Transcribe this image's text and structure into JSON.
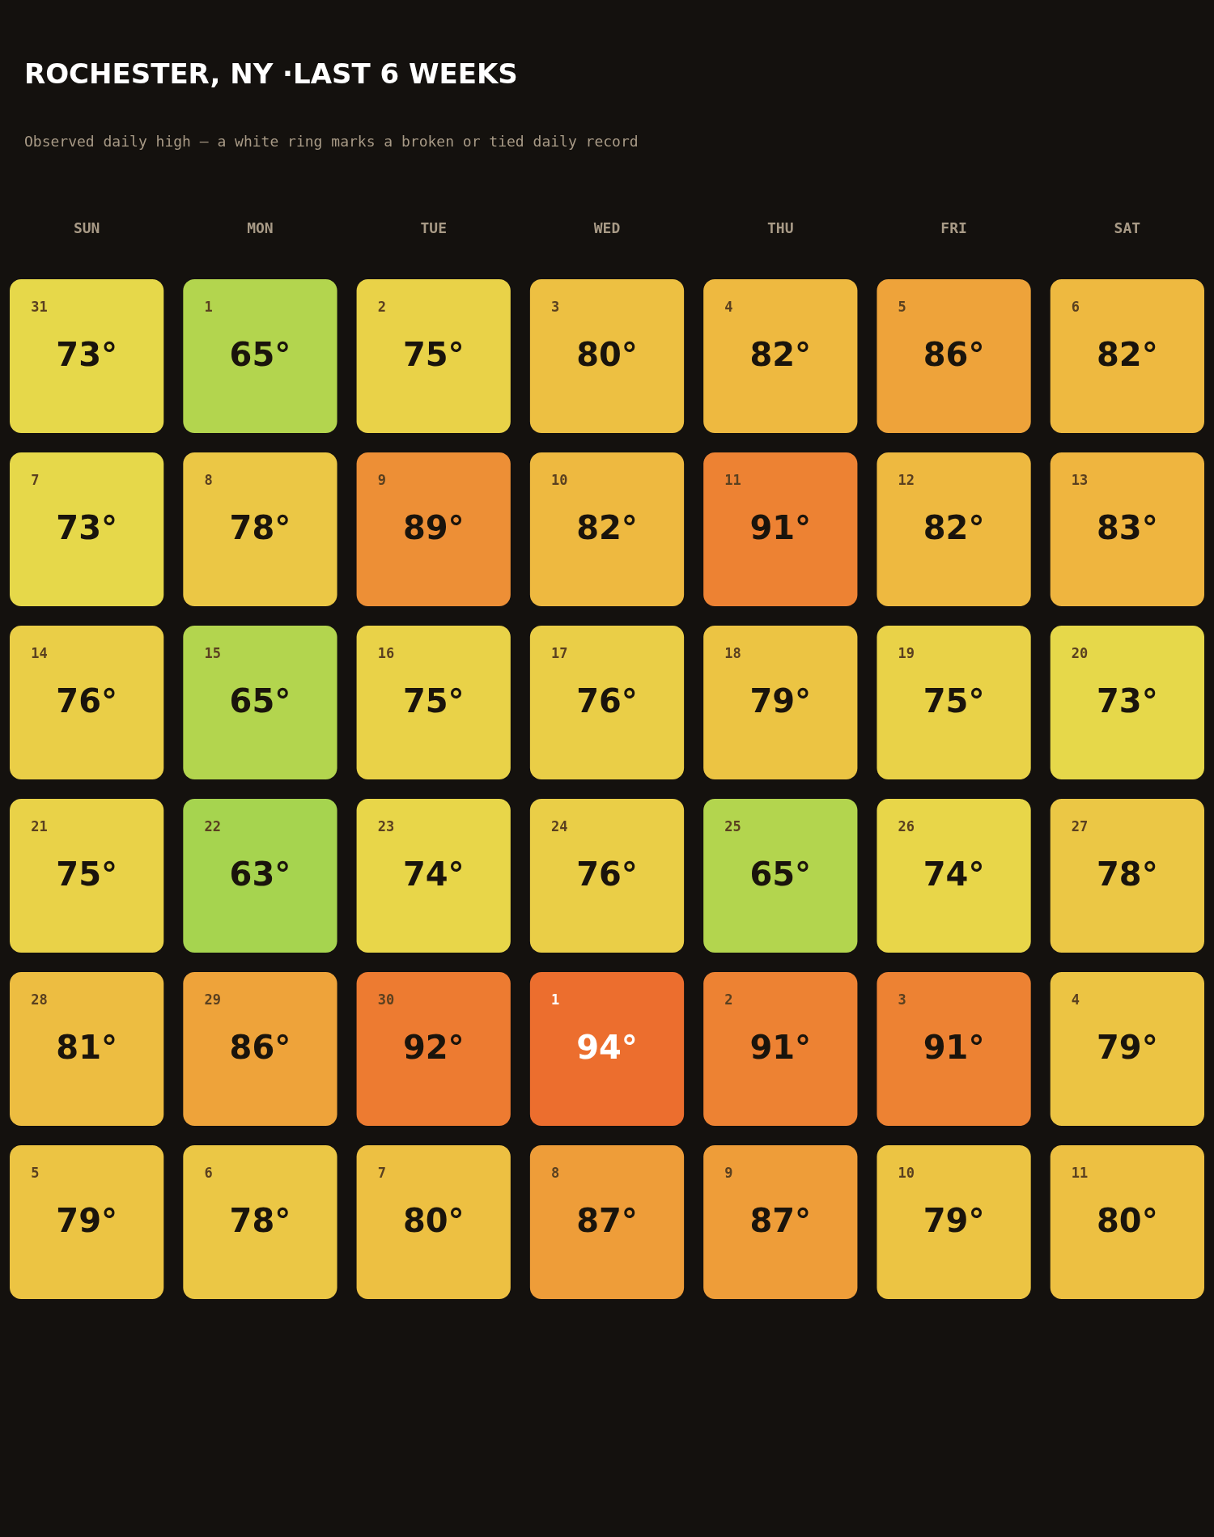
{
  "chart_data": {
    "type": "heatmap",
    "title": "ROCHESTER, NY ·LAST 6 WEEKS",
    "subtitle": "Observed daily high — a white ring marks a broken or tied daily record",
    "categories": [
      "SUN",
      "MON",
      "TUE",
      "WED",
      "THU",
      "FRI",
      "SAT"
    ],
    "y_categories": [
      null,
      null,
      null,
      null,
      null,
      null
    ],
    "colors": [
      "#a6d44f",
      "#e8d84a",
      "#efb33e",
      "#ec6e2e"
    ],
    "cells": [
      [
        73,
        65,
        75,
        80,
        82,
        86,
        82
      ],
      [
        73,
        78,
        89,
        82,
        91,
        82,
        83
      ],
      [
        76,
        65,
        75,
        76,
        79,
        75,
        73
      ],
      [
        75,
        63,
        74,
        76,
        65,
        74,
        78
      ],
      [
        81,
        86,
        92,
        94,
        91,
        91,
        79
      ],
      [
        79,
        78,
        80,
        87,
        87,
        79,
        80
      ]
    ],
    "cell_labels": [
      [
        "73°",
        "65°",
        "75°",
        "80°",
        "82°",
        "86°",
        "82°"
      ],
      [
        "73°",
        "78°",
        "89°",
        "82°",
        "91°",
        "82°",
        "83°"
      ],
      [
        "76°",
        "65°",
        "75°",
        "76°",
        "79°",
        "75°",
        "73°"
      ],
      [
        "75°",
        "63°",
        "74°",
        "76°",
        "65°",
        "74°",
        "78°"
      ],
      [
        "81°",
        "86°",
        "92°",
        "94°",
        "91°",
        "91°",
        "79°"
      ],
      [
        "79°",
        "78°",
        "80°",
        "87°",
        "87°",
        "79°",
        "80°"
      ]
    ],
    "annotations": [
      "31",
      "1",
      "2",
      "3",
      "4",
      "5",
      "6",
      "7",
      "8",
      "9",
      "10",
      "11",
      "12",
      "13",
      "14",
      "15",
      "16",
      "17",
      "18",
      "19",
      "20",
      "21",
      "22",
      "23",
      "24",
      "25",
      "26",
      "27",
      "28",
      "29",
      "30",
      "1",
      "2",
      "3",
      "4",
      "5",
      "6",
      "7",
      "8",
      "9",
      "10",
      "11"
    ]
  }
}
